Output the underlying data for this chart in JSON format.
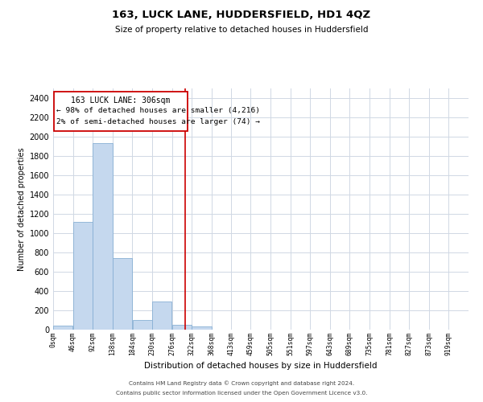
{
  "title": "163, LUCK LANE, HUDDERSFIELD, HD1 4QZ",
  "subtitle": "Size of property relative to detached houses in Huddersfield",
  "xlabel": "Distribution of detached houses by size in Huddersfield",
  "ylabel": "Number of detached properties",
  "bar_color": "#c5d8ee",
  "bar_edge_color": "#88b0d4",
  "grid_color": "#d0d8e4",
  "background_color": "#ffffff",
  "annotation_box_color": "#cc0000",
  "annotation_text": "163 LUCK LANE: 306sqm",
  "annotation_line1": "← 98% of detached houses are smaller (4,216)",
  "annotation_line2": "2% of semi-detached houses are larger (74) →",
  "vline_x": 306,
  "vline_color": "#cc0000",
  "bin_edges": [
    0,
    46,
    92,
    138,
    184,
    230,
    276,
    322,
    368,
    413,
    459,
    505,
    551,
    597,
    643,
    689,
    735,
    781,
    827,
    873,
    919,
    965
  ],
  "bar_heights": [
    40,
    1120,
    1930,
    740,
    100,
    290,
    50,
    30,
    0,
    0,
    0,
    0,
    0,
    0,
    0,
    0,
    0,
    0,
    0,
    0,
    0
  ],
  "ylim": [
    0,
    2500
  ],
  "yticks": [
    0,
    200,
    400,
    600,
    800,
    1000,
    1200,
    1400,
    1600,
    1800,
    2000,
    2200,
    2400
  ],
  "xtick_labels": [
    "0sqm",
    "46sqm",
    "92sqm",
    "138sqm",
    "184sqm",
    "230sqm",
    "276sqm",
    "322sqm",
    "368sqm",
    "413sqm",
    "459sqm",
    "505sqm",
    "551sqm",
    "597sqm",
    "643sqm",
    "689sqm",
    "735sqm",
    "781sqm",
    "827sqm",
    "873sqm",
    "919sqm"
  ],
  "footnote1": "Contains HM Land Registry data © Crown copyright and database right 2024.",
  "footnote2": "Contains public sector information licensed under the Open Government Licence v3.0."
}
